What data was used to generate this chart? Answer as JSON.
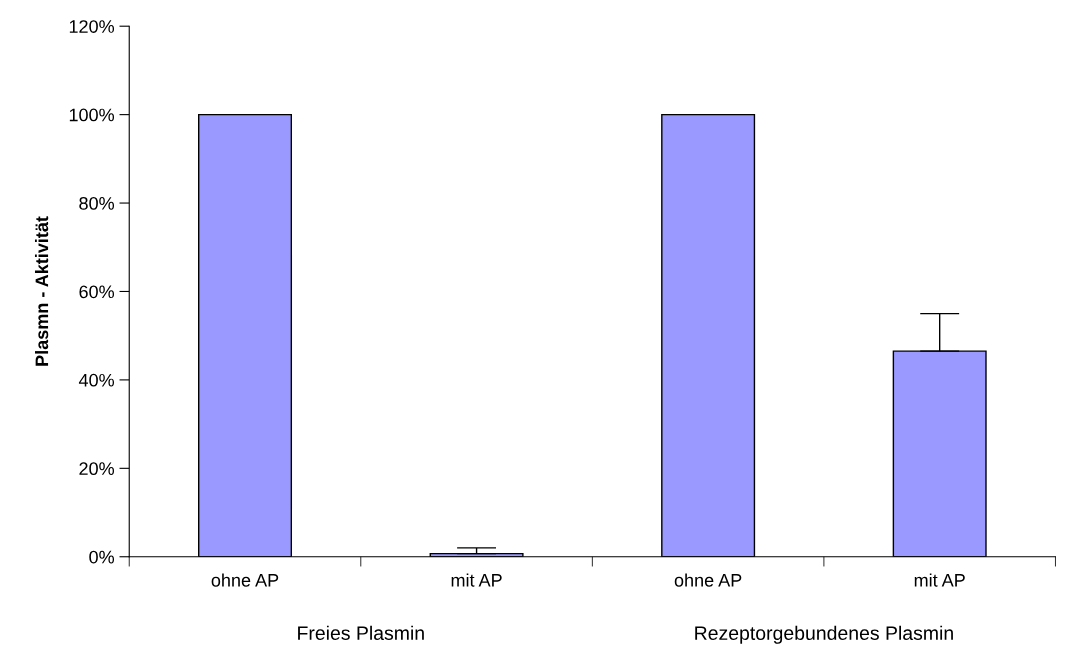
{
  "chart_data": {
    "type": "bar",
    "ylabel": "Plasmn - Aktivität",
    "categories": [
      "ohne AP",
      "mit AP",
      "ohne AP",
      "mit AP"
    ],
    "values": [
      100,
      0.7,
      100,
      46.5
    ],
    "errors": [
      null,
      [
        0.7,
        2
      ],
      null,
      [
        46.5,
        55
      ]
    ],
    "color": "#9999ff",
    "annotations": [
      "Freies Plasmin",
      "Rezeptorgebundenes Plasmin"
    ],
    "ylim": [
      0,
      120
    ],
    "yticks": [
      {
        "value": 0,
        "label": "0%"
      },
      {
        "value": 20,
        "label": "20%"
      },
      {
        "value": 40,
        "label": "40%"
      },
      {
        "value": 60,
        "label": "60%"
      },
      {
        "value": 80,
        "label": "80%"
      },
      {
        "value": 100,
        "label": "100%"
      },
      {
        "value": 120,
        "label": "120%"
      }
    ],
    "grid": false,
    "legend": false
  }
}
